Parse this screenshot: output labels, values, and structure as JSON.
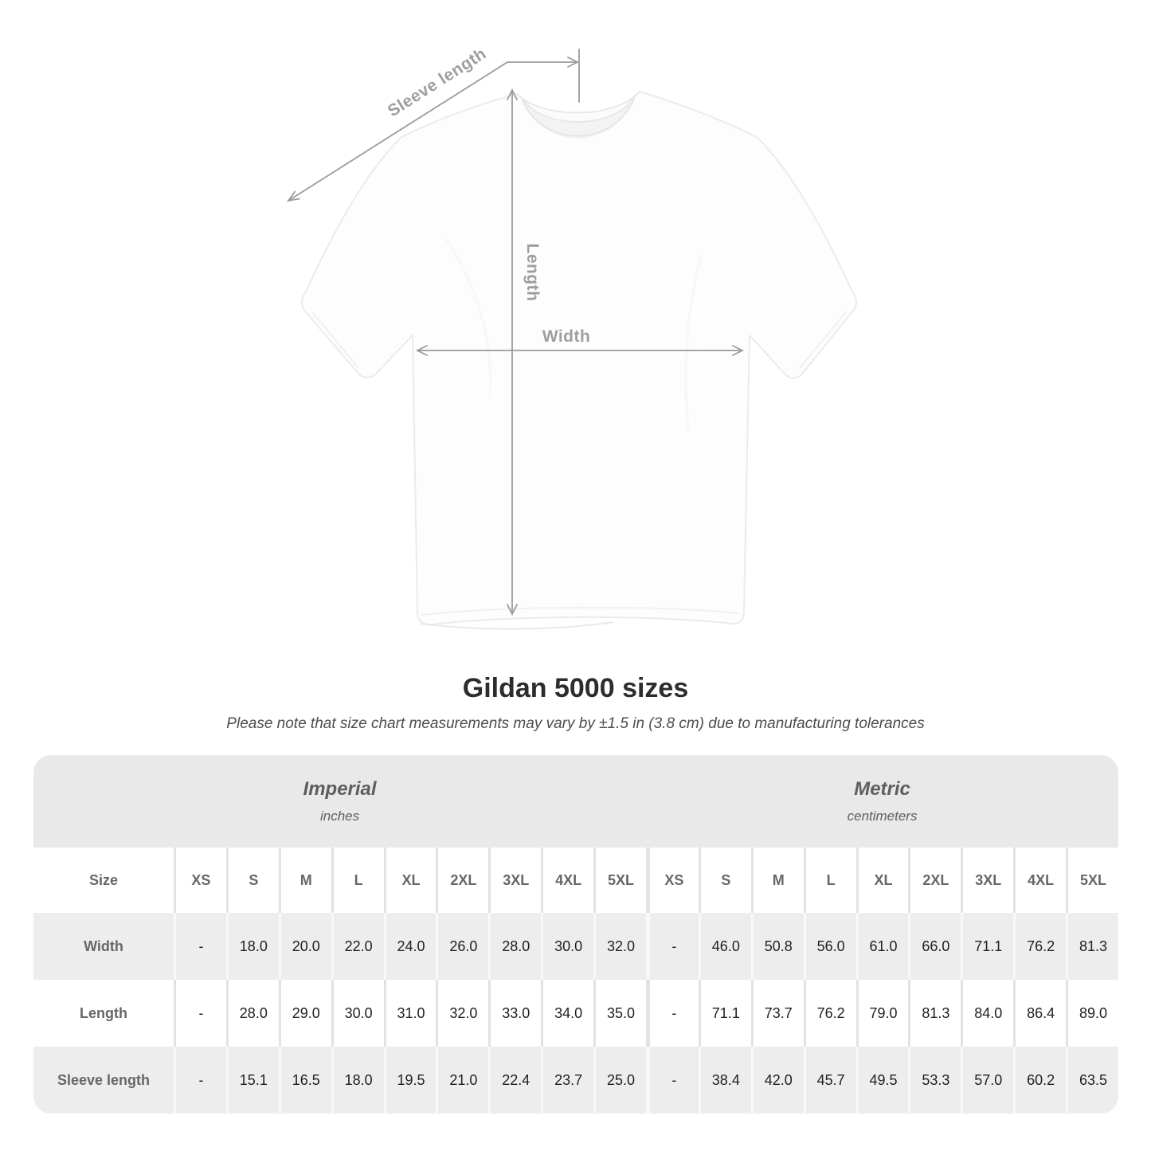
{
  "page": {
    "title": "Gildan 5000 sizes",
    "subtitle": "Please note that size chart measurements may vary by ±1.5 in (3.8 cm) due to manufacturing tolerances"
  },
  "diagram": {
    "sleeve_length_label": "Sleeve length",
    "length_label": "Length",
    "width_label": "Width",
    "line_color": "#9b9b9b",
    "label_color": "#9e9e9e",
    "shirt_color": "#fdfdfd",
    "shirt_outline_color": "#ebebeb"
  },
  "table": {
    "sections": [
      {
        "name": "Imperial",
        "unit": "inches"
      },
      {
        "name": "Metric",
        "unit": "centimeters"
      }
    ],
    "corner_label": "Size",
    "sizes": [
      "XS",
      "S",
      "M",
      "L",
      "XL",
      "2XL",
      "3XL",
      "4XL",
      "5XL"
    ],
    "rows": [
      {
        "label": "Width",
        "imperial": [
          "-",
          "18.0",
          "20.0",
          "22.0",
          "24.0",
          "26.0",
          "28.0",
          "30.0",
          "32.0"
        ],
        "metric": [
          "-",
          "46.0",
          "50.8",
          "56.0",
          "61.0",
          "66.0",
          "71.1",
          "76.2",
          "81.3"
        ]
      },
      {
        "label": "Length",
        "imperial": [
          "-",
          "28.0",
          "29.0",
          "30.0",
          "31.0",
          "32.0",
          "33.0",
          "34.0",
          "35.0"
        ],
        "metric": [
          "-",
          "71.1",
          "73.7",
          "76.2",
          "79.0",
          "81.3",
          "84.0",
          "86.4",
          "89.0"
        ]
      },
      {
        "label": "Sleeve length",
        "imperial": [
          "-",
          "15.1",
          "16.5",
          "18.0",
          "19.5",
          "21.0",
          "22.4",
          "23.7",
          "25.0"
        ],
        "metric": [
          "-",
          "38.4",
          "42.0",
          "45.7",
          "49.5",
          "53.3",
          "57.0",
          "60.2",
          "63.5"
        ]
      }
    ]
  },
  "chart_data": {
    "type": "table",
    "title": "Gildan 5000 sizes",
    "note": "Please note that size chart measurements may vary by ±1.5 in (3.8 cm) due to manufacturing tolerances",
    "columns": [
      "XS",
      "S",
      "M",
      "L",
      "XL",
      "2XL",
      "3XL",
      "4XL",
      "5XL"
    ],
    "imperial_unit": "inches",
    "metric_unit": "centimeters",
    "series": [
      {
        "name": "Width (in)",
        "values": [
          null,
          18.0,
          20.0,
          22.0,
          24.0,
          26.0,
          28.0,
          30.0,
          32.0
        ]
      },
      {
        "name": "Length (in)",
        "values": [
          null,
          28.0,
          29.0,
          30.0,
          31.0,
          32.0,
          33.0,
          34.0,
          35.0
        ]
      },
      {
        "name": "Sleeve length (in)",
        "values": [
          null,
          15.1,
          16.5,
          18.0,
          19.5,
          21.0,
          22.4,
          23.7,
          25.0
        ]
      },
      {
        "name": "Width (cm)",
        "values": [
          null,
          46.0,
          50.8,
          56.0,
          61.0,
          66.0,
          71.1,
          76.2,
          81.3
        ]
      },
      {
        "name": "Length (cm)",
        "values": [
          null,
          71.1,
          73.7,
          76.2,
          79.0,
          81.3,
          84.0,
          86.4,
          89.0
        ]
      },
      {
        "name": "Sleeve length (cm)",
        "values": [
          null,
          38.4,
          42.0,
          45.7,
          49.5,
          53.3,
          57.0,
          60.2,
          63.5
        ]
      }
    ]
  }
}
